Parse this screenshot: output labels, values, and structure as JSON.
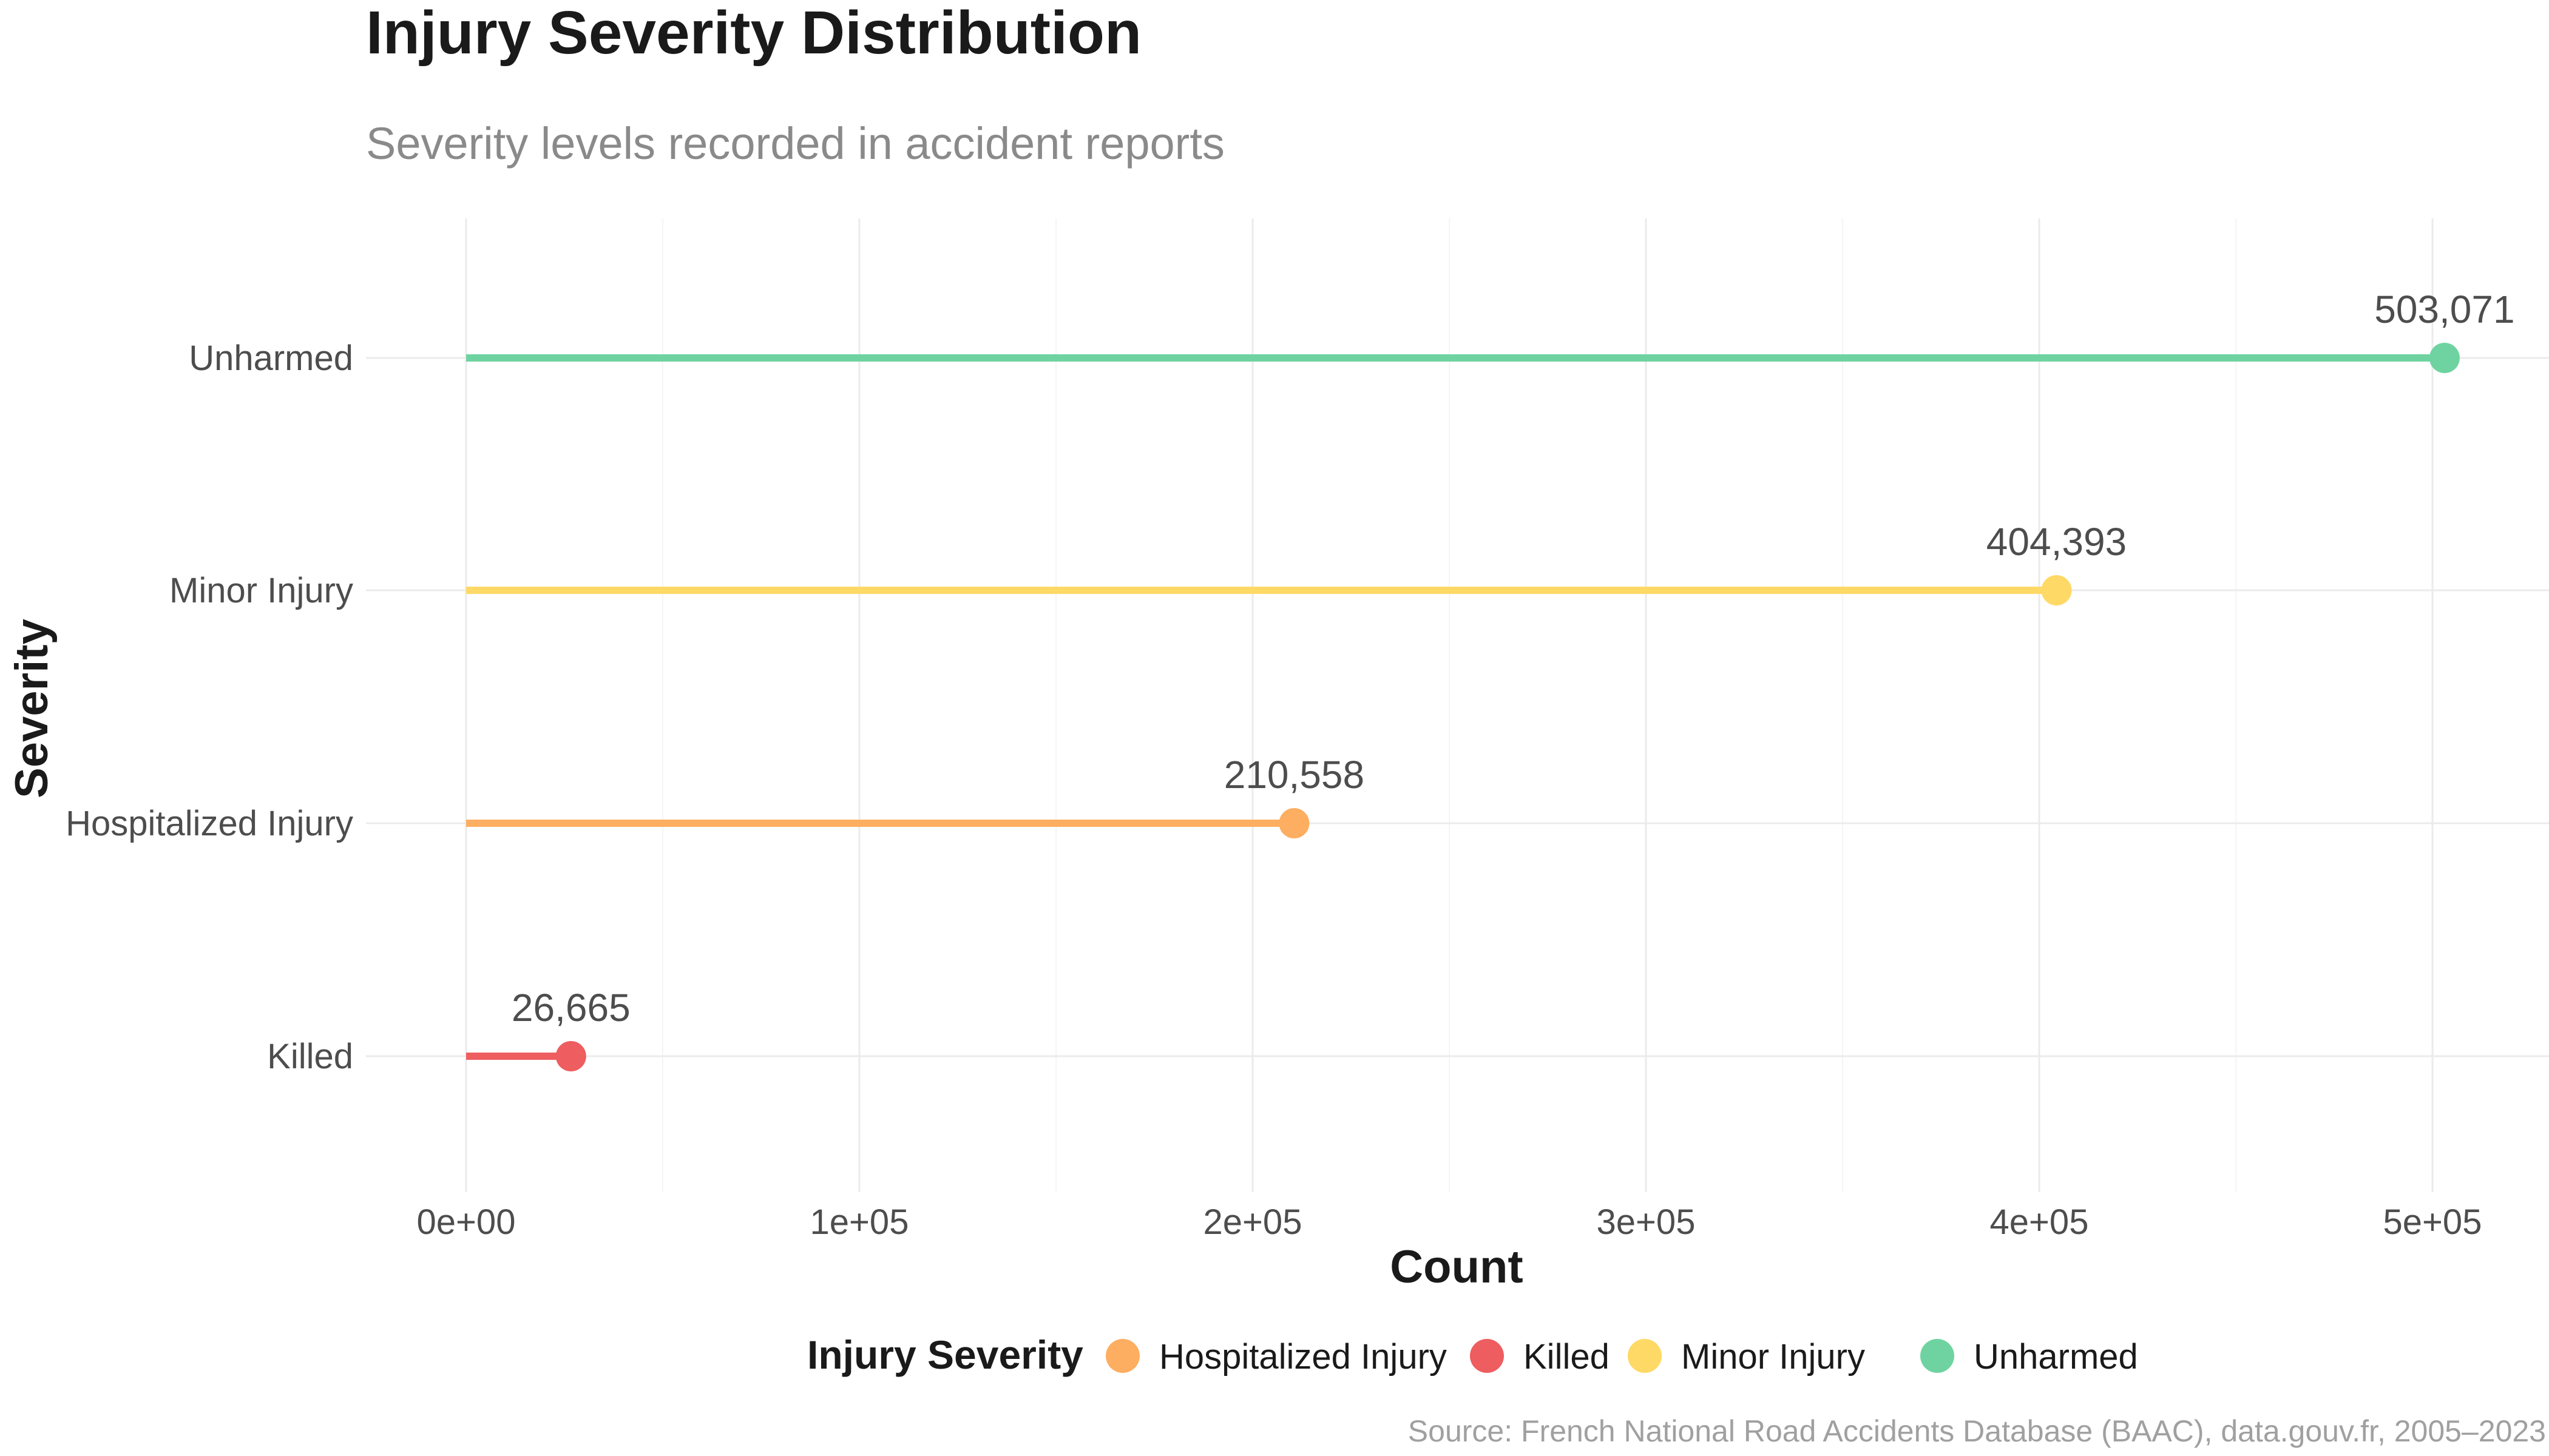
{
  "chart_data": {
    "type": "lollipop",
    "title": "Injury Severity Distribution",
    "subtitle": "Severity levels recorded in accident reports",
    "xlabel": "Count",
    "ylabel": "Severity",
    "xlim": [
      0,
      520000
    ],
    "x_ticks": [
      0,
      100000,
      200000,
      300000,
      400000,
      500000
    ],
    "x_tick_labels": [
      "0e+00",
      "1e+05",
      "2e+05",
      "3e+05",
      "4e+05",
      "5e+05"
    ],
    "categories": [
      "Killed",
      "Hospitalized Injury",
      "Minor Injury",
      "Unharmed"
    ],
    "values": [
      26665,
      210558,
      404393,
      503071
    ],
    "value_labels": [
      "26,665",
      "210,558",
      "404,393",
      "503,071"
    ],
    "colors": {
      "Killed": "#EE5D5F",
      "Hospitalized Injury": "#FDAE61",
      "Minor Injury": "#FFD966",
      "Unharmed": "#6ED3A0"
    },
    "legend": {
      "title": "Injury Severity",
      "position": "bottom",
      "items": [
        "Hospitalized Injury",
        "Killed",
        "Minor Injury",
        "Unharmed"
      ]
    },
    "grid": true,
    "caption": "Source: French National Road Accidents Database (BAAC), data.gouv.fr, 2005–2023"
  }
}
